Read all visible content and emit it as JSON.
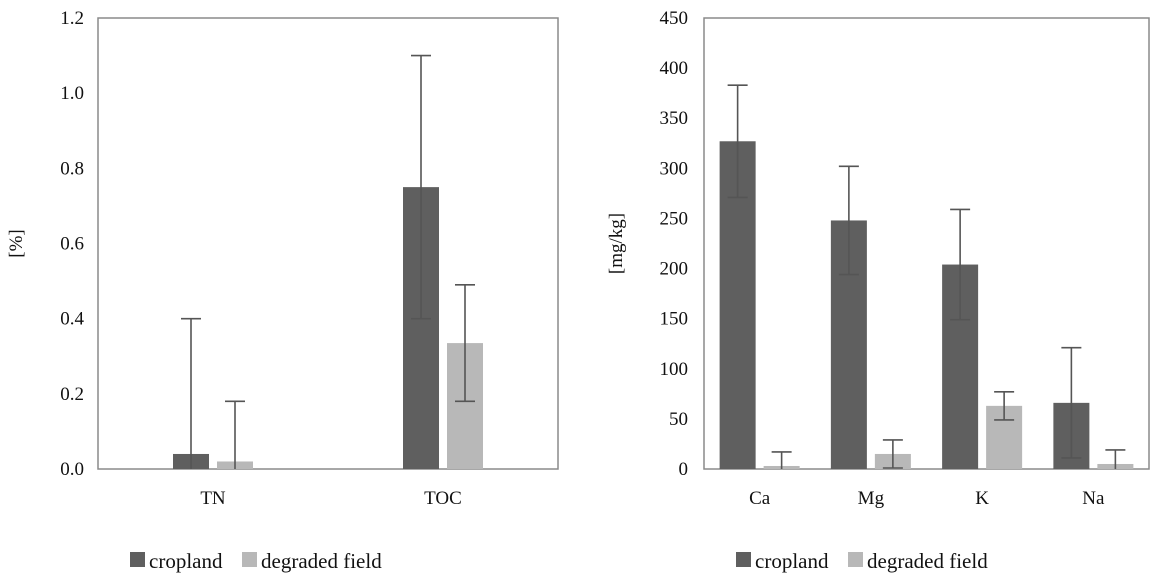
{
  "colors": {
    "cropland": "#5f5f5f",
    "degraded": "#b8b8b8",
    "error": "#555555",
    "frame": "#8a8a8a"
  },
  "chart_data": [
    {
      "type": "bar",
      "ylabel": "[%]",
      "ylim": [
        0,
        1.2
      ],
      "yticks": [
        "0.0",
        "0.2",
        "0.4",
        "0.6",
        "0.8",
        "1.0",
        "1.2"
      ],
      "categories": [
        "TN",
        "TOC"
      ],
      "series": [
        {
          "name": "cropland",
          "values": [
            0.04,
            0.75
          ],
          "errors": [
            0.36,
            0.35
          ]
        },
        {
          "name": "degraded field",
          "values": [
            0.02,
            0.335
          ],
          "errors": [
            0.16,
            0.155
          ]
        }
      ],
      "legend": [
        "cropland",
        "degraded field"
      ],
      "legend_position": "bottom"
    },
    {
      "type": "bar",
      "ylabel": "[mg/kg]",
      "ylim": [
        0,
        450
      ],
      "yticks": [
        "0",
        "50",
        "100",
        "150",
        "200",
        "250",
        "300",
        "350",
        "400",
        "450"
      ],
      "categories": [
        "Ca",
        "Mg",
        "K",
        "Na"
      ],
      "series": [
        {
          "name": "cropland",
          "values": [
            327,
            248,
            204,
            66
          ],
          "errors": [
            56,
            54,
            55,
            55
          ]
        },
        {
          "name": "degraded field",
          "values": [
            3,
            15,
            63,
            5
          ],
          "errors": [
            14,
            14,
            14,
            14
          ]
        }
      ],
      "legend": [
        "cropland",
        "degraded field"
      ],
      "legend_position": "bottom"
    }
  ]
}
